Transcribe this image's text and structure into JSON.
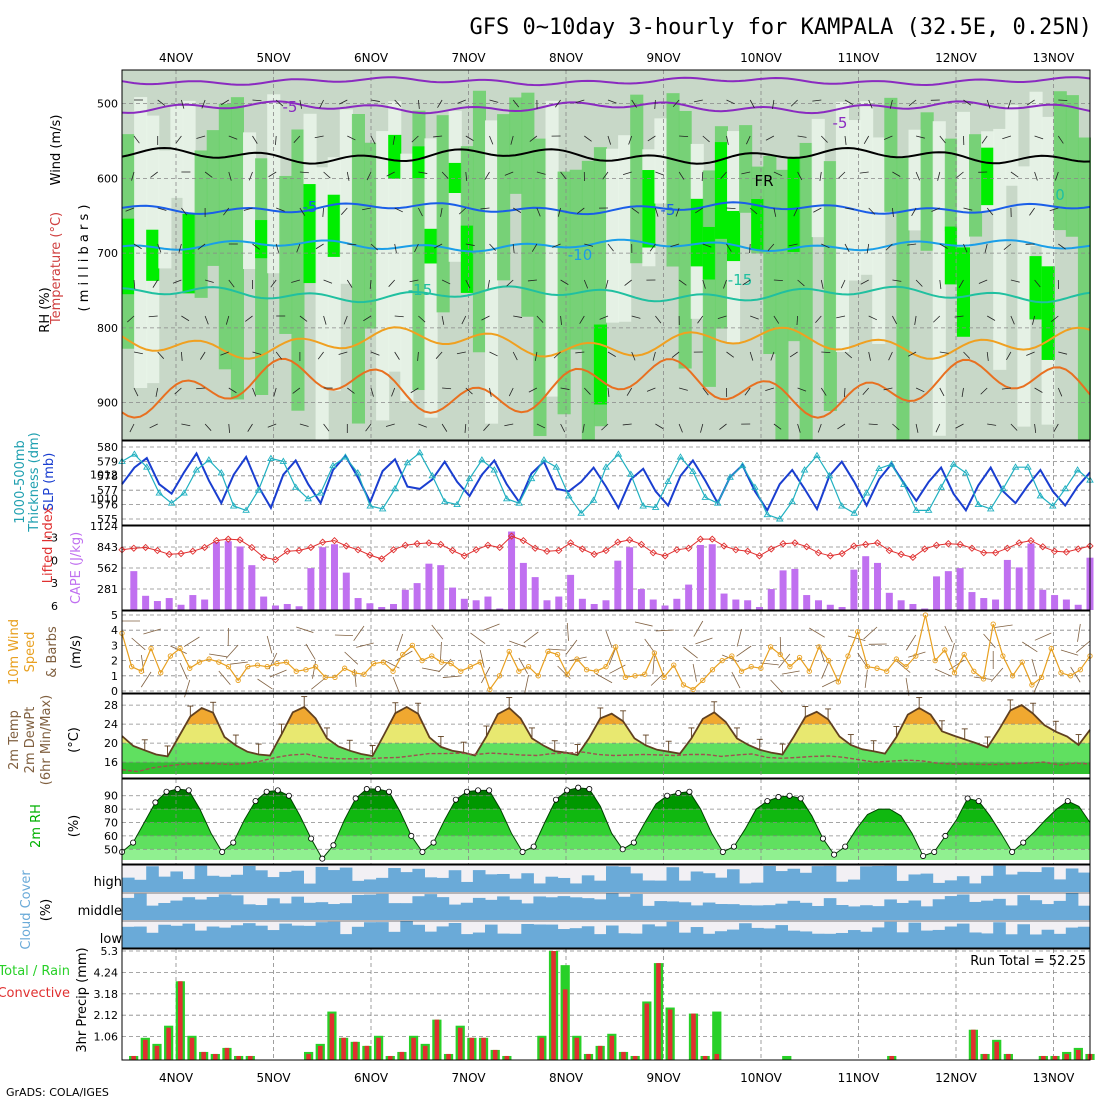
{
  "title": "GFS 0~10day 3-hourly for KAMPALA (32.5E, 0.25N)",
  "credit": "GrADS: COLA/IGES",
  "run_total_label": "Run Total = 52.25",
  "dates": [
    "4NOV",
    "5NOV",
    "6NOV",
    "7NOV",
    "8NOV",
    "9NOV",
    "10NOV",
    "11NOV",
    "12NOV",
    "13NOV"
  ],
  "panel_labels": {
    "upper": {
      "rh": "RH (%)",
      "temp": "Temperature (°C)",
      "wind": "Wind (m/s)",
      "unit": "( m i l l i b a r s )"
    },
    "slp": {
      "thick": "1000-500mb",
      "thick2": "Thickness (dm)",
      "slp": "SLP (mb)"
    },
    "cape": {
      "li": "Lifted Index",
      "cape": "CAPE (J/kg)"
    },
    "wind10": {
      "l1": "10m Wind",
      "l2": "Speed",
      "l3": "& Barbs",
      "unit": "(m/s)"
    },
    "temp2m": {
      "l1": "2m Temp",
      "l2": "2m DewPt",
      "l3": "(6hr Min/Max)",
      "unit": "(°C)"
    },
    "rh2m": {
      "l1": "2m RH",
      "unit": "(%)"
    },
    "cloud": {
      "l1": "Cloud Cover",
      "unit": "(%)",
      "high": "high",
      "middle": "middle",
      "low": "low"
    },
    "precip": {
      "l1": "Total / Rain",
      "l2": "Convective",
      "l3": "3hr Precip (mm)"
    }
  },
  "colors": {
    "rh_light": "#c8d8c8",
    "rh_mid": "#6ed06e",
    "rh_bright": "#00ee00",
    "rh_pale": "#e8f4e8",
    "slp": "#1a3ed0",
    "thickness": "#20b0c0",
    "li": "#e03030",
    "cape": "#c070f0",
    "wind10": "#e8a020",
    "barb": "#806040",
    "temp_fill": "#f0a830",
    "dewpt": "#a05050",
    "rh2m": "#00b000",
    "cloud": "#6aaad8",
    "rain": "#28d028",
    "conv": "#e03030"
  },
  "upper_ticks": [
    "500",
    "600",
    "700",
    "800",
    "900"
  ],
  "upper_contour_labels": [
    "-5",
    "-5",
    "-5",
    "-5",
    "-10",
    "-15",
    "-15",
    "FR",
    "0"
  ],
  "chart_data": [
    {
      "type": "line",
      "title": "SLP (mb) / 1000-500mb Thickness (dm)",
      "x_ticks": [
        "4NOV",
        "5NOV",
        "6NOV",
        "7NOV",
        "8NOV",
        "9NOV",
        "10NOV",
        "11NOV",
        "12NOV",
        "13NOV"
      ],
      "y_left_ticks": [
        "575",
        "576",
        "577",
        "578",
        "579",
        "580"
      ],
      "y_right_ticks": [
        "1010",
        "1012"
      ],
      "series": [
        {
          "name": "SLP (mb)",
          "values": [
            1011.2,
            1012.6,
            1013.4,
            1011.2,
            1010.4,
            1012.2,
            1013.8,
            1011.5,
            1009.6,
            1012.0,
            1013.5,
            1011.0,
            1009.2,
            1012.0,
            1013.2,
            1011.2,
            1009.6,
            1012.4,
            1013.6,
            1011.8,
            1009.7,
            1012.3,
            1013.3,
            1011.0,
            1010.8,
            1011.6,
            1013.1,
            1011.4,
            1010.2,
            1012.0,
            1013.2,
            1011.2,
            1009.7,
            1012.1,
            1013.1,
            1010.8,
            1010.6,
            1011.4,
            1012.6,
            1011.0,
            1009.2,
            1011.6,
            1012.5,
            1010.6,
            1009.4,
            1011.9,
            1013.2,
            1011.5,
            1009.6,
            1011.8,
            1012.8,
            1010.6,
            1009.0,
            1011.2,
            1012.4,
            1010.8,
            1009.1,
            1011.9,
            1013.1,
            1011.4,
            1009.4,
            1011.6,
            1012.9,
            1011.3,
            1009.8,
            1011.4,
            1012.6,
            1010.4,
            1009.0,
            1011.1,
            1012.6,
            1010.6,
            1009.6,
            1011.1,
            1012.4,
            1010.6,
            1009.4,
            1011.0,
            1012.2
          ]
        },
        {
          "name": "Thickness (dm)",
          "values": [
            579.0,
            579.5,
            578.6,
            576.8,
            576.1,
            576.8,
            578.4,
            579.1,
            578.2,
            575.9,
            575.6,
            577.0,
            579.2,
            579.0,
            577.2,
            576.4,
            576.8,
            578.7,
            579.3,
            578.2,
            575.9,
            575.7,
            577.1,
            578.9,
            579.6,
            578.0,
            576.2,
            576.0,
            577.8,
            579.1,
            578.4,
            576.4,
            576.1,
            577.8,
            579.1,
            578.6,
            576.6,
            575.4,
            576.3,
            578.6,
            579.5,
            578.1,
            575.9,
            575.8,
            577.6,
            579.3,
            578.3,
            576.5,
            576.1,
            577.9,
            578.7,
            577.2,
            575.3,
            575.0,
            576.2,
            578.4,
            579.4,
            578.0,
            575.9,
            575.4,
            576.8,
            578.5,
            578.8,
            577.4,
            575.6,
            575.6,
            577.2,
            578.8,
            578.2,
            576.0,
            575.7,
            577.1,
            578.6,
            578.6,
            576.6,
            575.9,
            577.1,
            578.4,
            577.7
          ]
        }
      ]
    },
    {
      "type": "bar",
      "title": "CAPE (J/kg) / Lifted Index",
      "y_left_ticks": [
        "-3",
        "0",
        "3",
        "6"
      ],
      "y_right_ticks": [
        "281",
        "562",
        "843",
        "1124"
      ],
      "series": [
        {
          "name": "CAPE (J/kg)",
          "values": [
            0,
            520,
            190,
            120,
            160,
            70,
            200,
            140,
            910,
            920,
            850,
            600,
            180,
            60,
            80,
            50,
            560,
            840,
            880,
            500,
            160,
            90,
            40,
            80,
            270,
            360,
            620,
            600,
            300,
            150,
            130,
            180,
            20,
            1050,
            630,
            440,
            130,
            180,
            470,
            150,
            80,
            130,
            660,
            840,
            280,
            140,
            60,
            150,
            340,
            870,
            880,
            220,
            140,
            130,
            40,
            280,
            530,
            550,
            200,
            130,
            70,
            40,
            540,
            720,
            630,
            230,
            130,
            80,
            20,
            450,
            520,
            560,
            240,
            160,
            140,
            670,
            570,
            890,
            270,
            200,
            140,
            70,
            700
          ]
        },
        {
          "name": "Lifted Index",
          "values": [
            -1.4,
            -1.6,
            -1.7,
            -1.3,
            -0.8,
            -0.9,
            -1.2,
            -1.7,
            -2.6,
            -2.8,
            -2.7,
            -1.7,
            -0.4,
            -0.1,
            -1.2,
            -1.3,
            -1.7,
            -2.4,
            -2.6,
            -1.9,
            -1.4,
            -0.7,
            -0.2,
            -1.4,
            -2.0,
            -2.2,
            -2.3,
            -2.1,
            -1.3,
            -0.6,
            -1.4,
            -2.0,
            -1.7,
            -3.2,
            -2.6,
            -1.6,
            -1.2,
            -1.3,
            -2.3,
            -1.5,
            -0.8,
            -1.3,
            -2.4,
            -2.7,
            -2.1,
            -1.0,
            -0.6,
            -1.4,
            -1.6,
            -2.8,
            -2.8,
            -1.9,
            -1.4,
            -1.2,
            -0.6,
            -1.5,
            -2.2,
            -2.3,
            -1.8,
            -1.0,
            -0.6,
            -0.9,
            -1.9,
            -2.1,
            -2.3,
            -1.3,
            -0.8,
            -0.4,
            -1.5,
            -2.0,
            -2.2,
            -2.1,
            -1.6,
            -1.0,
            -1.0,
            -1.6,
            -2.3,
            -2.6,
            -1.8,
            -1.2,
            -1.1,
            -1.5,
            -1.9
          ]
        }
      ]
    },
    {
      "type": "line",
      "title": "10m Wind Speed (m/s)",
      "y_ticks": [
        "0",
        "1",
        "2",
        "3",
        "4",
        "5"
      ],
      "series": [
        {
          "name": "10m Wind Speed",
          "values": [
            3.8,
            1.6,
            1.3,
            2.8,
            1.2,
            2.3,
            2.8,
            1.5,
            1.9,
            2.1,
            1.9,
            1.6,
            0.7,
            1.6,
            1.7,
            1.6,
            1.8,
            1.9,
            1.3,
            1.4,
            1.6,
            0.9,
            0.9,
            1.5,
            1.2,
            1.1,
            1.8,
            1.9,
            1.3,
            2.4,
            3.0,
            2.0,
            2.3,
            1.9,
            1.8,
            1.3,
            1.6,
            1.9,
            0.1,
            1.0,
            2.6,
            1.3,
            1.6,
            1.0,
            2.6,
            2.4,
            1.1,
            2.1,
            1.4,
            1.3,
            1.6,
            2.9,
            0.9,
            1.0,
            1.1,
            2.5,
            0.9,
            1.7,
            0.4,
            0.1,
            0.7,
            1.4,
            2.0,
            2.3,
            1.3,
            1.6,
            1.5,
            2.9,
            2.4,
            1.6,
            2.2,
            1.3,
            2.9,
            2.0,
            0.6,
            2.3,
            3.9,
            1.6,
            1.5,
            1.3,
            2.1,
            1.6,
            2.3,
            5.0,
            2.0,
            2.7,
            1.2,
            2.4,
            1.3,
            0.8,
            4.4,
            2.3,
            1.0,
            1.9,
            0.4,
            0.9,
            2.8,
            1.2,
            1.0,
            1.4,
            2.3
          ]
        }
      ]
    },
    {
      "type": "area",
      "title": "2m Temp / 2m DewPt (°C)",
      "y_ticks": [
        "16",
        "20",
        "24",
        "28"
      ],
      "series": [
        {
          "name": "2m Temp",
          "values": [
            21.5,
            19.4,
            18.5,
            17.6,
            17.2,
            21.4,
            25.6,
            27.4,
            26.4,
            21.3,
            19.5,
            18.2,
            17.6,
            17.4,
            21.8,
            26.5,
            27.6,
            25.2,
            21.0,
            19.3,
            18.4,
            17.7,
            17.3,
            21.7,
            26.3,
            27.6,
            26.2,
            21.2,
            19.2,
            18.4,
            18.0,
            17.4,
            21.4,
            26.1,
            27.4,
            25.2,
            21.0,
            19.5,
            18.3,
            18.0,
            17.5,
            21.0,
            25.2,
            26.2,
            24.6,
            21.0,
            19.5,
            18.6,
            18.2,
            17.8,
            21.0,
            25.1,
            26.5,
            24.5,
            21.0,
            19.6,
            18.6,
            18.0,
            17.6,
            21.4,
            25.5,
            26.6,
            25.0,
            21.4,
            19.6,
            18.7,
            18.3,
            17.8,
            21.3,
            26.0,
            27.4,
            26.0,
            22.5,
            21.6,
            20.8,
            20.0,
            19.1,
            22.8,
            26.9,
            28.0,
            26.2,
            23.8,
            22.4,
            21.4,
            19.6,
            22.8
          ]
        },
        {
          "name": "2m DewPt",
          "values": [
            14.4,
            14.0,
            14.8,
            15.2,
            15.6,
            15.7,
            15.7,
            15.5,
            15.7,
            16.2,
            17.0,
            17.5,
            17.7,
            17.0,
            16.7,
            16.7,
            16.7,
            16.9,
            17.0,
            17.4,
            17.8,
            17.8,
            17.9,
            17.6,
            17.9,
            17.7,
            17.5,
            17.4,
            17.8,
            17.9,
            18.1,
            17.6,
            17.4,
            17.5,
            17.6,
            17.5,
            17.4,
            17.6,
            17.6,
            17.2,
            17.5,
            17.7,
            17.0,
            16.8,
            17.0,
            17.2,
            17.3,
            17.0,
            16.5,
            16.0,
            16.2,
            16.4,
            16.3,
            15.8,
            15.6,
            15.6,
            15.5,
            15.5,
            15.7,
            15.8,
            16.0,
            15.4,
            15.8,
            15.6
          ]
        }
      ]
    },
    {
      "type": "area",
      "title": "2m RH (%)",
      "y_ticks": [
        "50",
        "60",
        "70",
        "80",
        "90"
      ],
      "series": [
        {
          "name": "2m RH",
          "values": [
            48,
            55,
            70,
            85,
            93,
            95,
            94,
            80,
            62,
            48,
            55,
            72,
            86,
            93,
            94,
            90,
            75,
            58,
            43,
            53,
            72,
            88,
            95,
            95,
            93,
            78,
            60,
            48,
            55,
            72,
            87,
            93,
            94,
            94,
            80,
            62,
            48,
            52,
            70,
            87,
            94,
            96,
            95,
            82,
            62,
            50,
            55,
            70,
            84,
            90,
            92,
            93,
            80,
            62,
            48,
            52,
            65,
            80,
            86,
            89,
            90,
            88,
            75,
            58,
            46,
            52,
            65,
            76,
            80,
            80,
            75,
            62,
            45,
            48,
            60,
            72,
            88,
            86,
            75,
            62,
            48,
            55,
            63,
            72,
            80,
            86,
            82,
            70
          ]
        }
      ]
    },
    {
      "type": "heatmap",
      "title": "Cloud Cover (%)",
      "rows": [
        "high",
        "middle",
        "low"
      ]
    },
    {
      "type": "bar",
      "title": "3hr Precip (mm)",
      "y_ticks": [
        "1.06",
        "2.12",
        "3.18",
        "4.24",
        "5.3"
      ],
      "series": [
        {
          "name": "Total / Rain",
          "values": [
            0,
            0.1,
            1.0,
            0.7,
            1.6,
            3.8,
            1.1,
            0.3,
            0.2,
            0.5,
            0.1,
            0.1,
            0,
            0,
            0,
            0,
            0.3,
            0.7,
            2.3,
            1.0,
            0.8,
            0.6,
            1.1,
            0.1,
            0.3,
            1.1,
            0.7,
            1.9,
            0.2,
            1.6,
            1.0,
            1.0,
            0.4,
            0.1,
            0,
            0,
            1.1,
            5.3,
            4.6,
            1.1,
            0.2,
            0.6,
            1.2,
            0.3,
            0.1,
            2.8,
            4.7,
            2.5,
            0,
            2.2,
            0.1,
            2.3,
            0,
            0,
            0,
            0,
            0,
            0.1,
            0,
            0,
            0,
            0,
            0,
            0,
            0,
            0,
            0.1,
            0,
            0,
            0,
            0,
            0,
            0,
            1.4,
            0.2,
            0.9,
            0.2,
            0,
            0,
            0.1,
            0.1,
            0.3,
            0.5,
            0.2
          ]
        },
        {
          "name": "Convective",
          "values": [
            0,
            0.1,
            0.9,
            0.6,
            1.5,
            3.8,
            1.0,
            0.3,
            0.2,
            0.5,
            0.1,
            0.1,
            0,
            0,
            0,
            0,
            0.2,
            0.6,
            2.2,
            1.0,
            0.8,
            0.6,
            1.0,
            0.1,
            0.3,
            1.0,
            0.6,
            1.9,
            0.2,
            1.5,
            1.0,
            1.0,
            0.4,
            0.1,
            0,
            0,
            1.0,
            5.3,
            3.4,
            1.0,
            0.2,
            0.6,
            1.1,
            0.3,
            0.1,
            2.7,
            4.7,
            2.4,
            0,
            2.2,
            0.1,
            0.2,
            0,
            0,
            0,
            0,
            0,
            0,
            0,
            0,
            0,
            0,
            0,
            0,
            0,
            0,
            0.1,
            0,
            0,
            0,
            0,
            0,
            0,
            1.4,
            0.2,
            0.8,
            0.2,
            0,
            0,
            0.1,
            0.1,
            0.2,
            0.4,
            0.2
          ]
        }
      ]
    }
  ]
}
